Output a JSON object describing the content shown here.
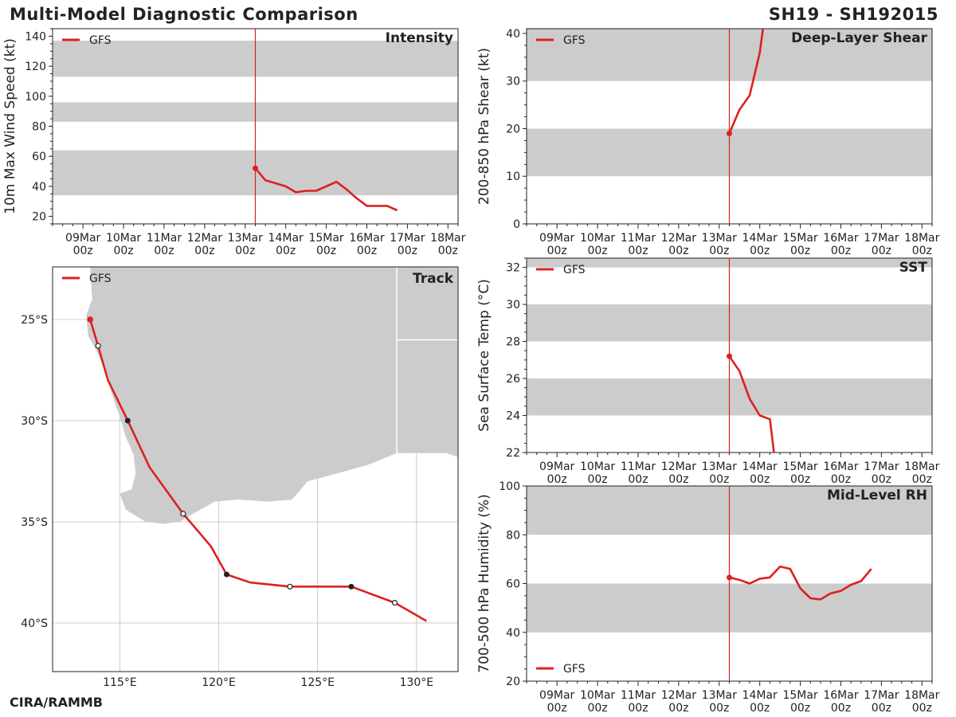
{
  "header": {
    "title": "Multi-Model Diagnostic Comparison",
    "storm_id": "SH19 - SH192015",
    "credit": "CIRA/RAMMB"
  },
  "colors": {
    "series": "#dd2020",
    "band": "#cccccc",
    "land": "#cccccc",
    "grid": "#cccccc",
    "axis": "#222222"
  },
  "chart_data": [
    {
      "id": "intensity",
      "type": "line",
      "title": "Intensity",
      "ylabel": "10m Max Wind Speed (kt)",
      "x_ticks": [
        "09Mar\n00z",
        "10Mar\n00z",
        "11Mar\n00z",
        "12Mar\n00z",
        "13Mar\n00z",
        "14Mar\n00z",
        "15Mar\n00z",
        "16Mar\n00z",
        "17Mar\n00z",
        "18Mar\n00z"
      ],
      "xlim": [
        -0.75,
        9.25
      ],
      "ylim": [
        15,
        145
      ],
      "y_ticks": [
        20,
        40,
        60,
        80,
        100,
        120,
        140
      ],
      "bands": [
        [
          34,
          64
        ],
        [
          83,
          96
        ],
        [
          113,
          137
        ]
      ],
      "init_day": 4.25,
      "legend": "GFS",
      "legend_position": "top-left",
      "series": [
        {
          "name": "GFS",
          "x": [
            4.25,
            4.5,
            5.0,
            5.25,
            5.5,
            5.75,
            6.25,
            6.5,
            6.75,
            7.0,
            7.5,
            7.75
          ],
          "values": [
            52,
            44,
            40,
            36,
            37,
            37,
            43,
            38,
            32,
            27,
            27,
            24
          ]
        }
      ]
    },
    {
      "id": "shear",
      "type": "line",
      "title": "Deep-Layer Shear",
      "ylabel": "200-850 hPa Shear (kt)",
      "x_ticks": [
        "09Mar\n00z",
        "10Mar\n00z",
        "11Mar\n00z",
        "12Mar\n00z",
        "13Mar\n00z",
        "14Mar\n00z",
        "15Mar\n00z",
        "16Mar\n00z",
        "17Mar\n00z",
        "18Mar\n00z"
      ],
      "xlim": [
        -0.75,
        9.25
      ],
      "ylim": [
        0,
        41
      ],
      "y_ticks": [
        0,
        10,
        20,
        30,
        40
      ],
      "bands": [
        [
          10,
          20
        ],
        [
          30,
          41
        ]
      ],
      "init_day": 4.25,
      "legend": "GFS",
      "legend_position": "top-left",
      "series": [
        {
          "name": "GFS",
          "x": [
            4.25,
            4.5,
            4.75,
            5.0,
            5.08
          ],
          "values": [
            19,
            24,
            27,
            36,
            41
          ]
        }
      ]
    },
    {
      "id": "sst",
      "type": "line",
      "title": "SST",
      "ylabel": "Sea Surface Temp (°C)",
      "x_ticks": [
        "09Mar\n00z",
        "10Mar\n00z",
        "11Mar\n00z",
        "12Mar\n00z",
        "13Mar\n00z",
        "14Mar\n00z",
        "15Mar\n00z",
        "16Mar\n00z",
        "17Mar\n00z",
        "18Mar\n00z"
      ],
      "xlim": [
        -0.75,
        9.25
      ],
      "ylim": [
        22,
        32.5
      ],
      "y_ticks": [
        22,
        24,
        26,
        28,
        30,
        32
      ],
      "bands": [
        [
          24,
          26
        ],
        [
          28,
          30
        ],
        [
          32,
          32.5
        ]
      ],
      "init_day": 4.25,
      "legend": "GFS",
      "legend_position": "top-left",
      "series": [
        {
          "name": "GFS",
          "x": [
            4.25,
            4.5,
            4.75,
            5.0,
            5.25,
            5.35
          ],
          "values": [
            27.2,
            26.4,
            24.9,
            24.0,
            23.8,
            22.0
          ]
        }
      ]
    },
    {
      "id": "rh",
      "type": "line",
      "title": "Mid-Level RH",
      "ylabel": "700-500 hPa Humidity (%)",
      "x_ticks": [
        "09Mar\n00z",
        "10Mar\n00z",
        "11Mar\n00z",
        "12Mar\n00z",
        "13Mar\n00z",
        "14Mar\n00z",
        "15Mar\n00z",
        "16Mar\n00z",
        "17Mar\n00z",
        "18Mar\n00z"
      ],
      "xlim": [
        -0.75,
        9.25
      ],
      "ylim": [
        20,
        100
      ],
      "y_ticks": [
        20,
        40,
        60,
        80,
        100
      ],
      "bands": [
        [
          40,
          60
        ],
        [
          80,
          100
        ]
      ],
      "init_day": 4.25,
      "legend": "GFS",
      "legend_position": "bottom-left",
      "series": [
        {
          "name": "GFS",
          "x": [
            4.25,
            4.5,
            4.75,
            5.0,
            5.25,
            5.5,
            5.75,
            6.0,
            6.25,
            6.5,
            6.75,
            7.0,
            7.25,
            7.5,
            7.75
          ],
          "values": [
            62.5,
            61.5,
            60,
            62,
            62.5,
            67,
            66,
            58,
            54,
            53.5,
            56,
            57,
            59.5,
            61,
            66
          ]
        }
      ]
    },
    {
      "id": "track",
      "type": "scatter",
      "title": "Track",
      "legend": "GFS",
      "legend_position": "top-left",
      "xlim": [
        111.6,
        132.1
      ],
      "ylim": [
        -42.4,
        -22.4
      ],
      "lon_ticks": [
        115,
        120,
        125,
        130
      ],
      "lon_labels": [
        "115°E",
        "120°E",
        "125°E",
        "130°E"
      ],
      "lat_ticks": [
        -25,
        -30,
        -35,
        -40
      ],
      "lat_labels": [
        "25°S",
        "30°S",
        "35°S",
        "40°S"
      ],
      "track": {
        "lon": [
          113.5,
          113.9,
          114.4,
          115.4,
          116.5,
          118.2,
          119.6,
          120.4,
          121.6,
          123.6,
          126.7,
          128.9,
          130.5
        ],
        "lat": [
          -25.0,
          -26.3,
          -28.0,
          -30.0,
          -32.3,
          -34.6,
          -36.2,
          -37.6,
          -38.0,
          -38.2,
          -38.2,
          -39.0,
          -39.9
        ]
      },
      "track_markers": [
        {
          "lon": 113.5,
          "lat": -25.0,
          "kind": "init"
        },
        {
          "lon": 113.9,
          "lat": -26.3,
          "kind": "open"
        },
        {
          "lon": 115.4,
          "lat": -30.0,
          "kind": "filled"
        },
        {
          "lon": 118.2,
          "lat": -34.6,
          "kind": "open"
        },
        {
          "lon": 120.4,
          "lat": -37.6,
          "kind": "filled"
        },
        {
          "lon": 123.6,
          "lat": -38.2,
          "kind": "open"
        },
        {
          "lon": 126.7,
          "lat": -38.2,
          "kind": "filled"
        },
        {
          "lon": 128.9,
          "lat": -39.0,
          "kind": "open"
        }
      ],
      "land": [
        [
          113.5,
          -22.4
        ],
        [
          132.1,
          -22.4
        ],
        [
          132.1,
          -31.8
        ],
        [
          131.5,
          -31.6
        ],
        [
          129.0,
          -31.6
        ],
        [
          127.5,
          -32.2
        ],
        [
          126.0,
          -32.6
        ],
        [
          124.5,
          -33.0
        ],
        [
          123.7,
          -33.9
        ],
        [
          122.5,
          -34.0
        ],
        [
          121.0,
          -33.9
        ],
        [
          119.8,
          -34.0
        ],
        [
          118.9,
          -34.5
        ],
        [
          118.0,
          -35.0
        ],
        [
          117.2,
          -35.1
        ],
        [
          116.3,
          -35.0
        ],
        [
          115.3,
          -34.4
        ],
        [
          115.0,
          -33.6
        ],
        [
          115.6,
          -33.4
        ],
        [
          115.8,
          -32.6
        ],
        [
          115.7,
          -31.7
        ],
        [
          115.3,
          -30.8
        ],
        [
          115.0,
          -29.8
        ],
        [
          114.6,
          -28.7
        ],
        [
          114.2,
          -27.4
        ],
        [
          113.8,
          -26.5
        ],
        [
          113.4,
          -25.8
        ],
        [
          113.3,
          -24.8
        ],
        [
          113.6,
          -24.0
        ],
        [
          113.5,
          -22.4
        ]
      ],
      "border_lon": 129.0,
      "border_lat": -26.0
    }
  ]
}
